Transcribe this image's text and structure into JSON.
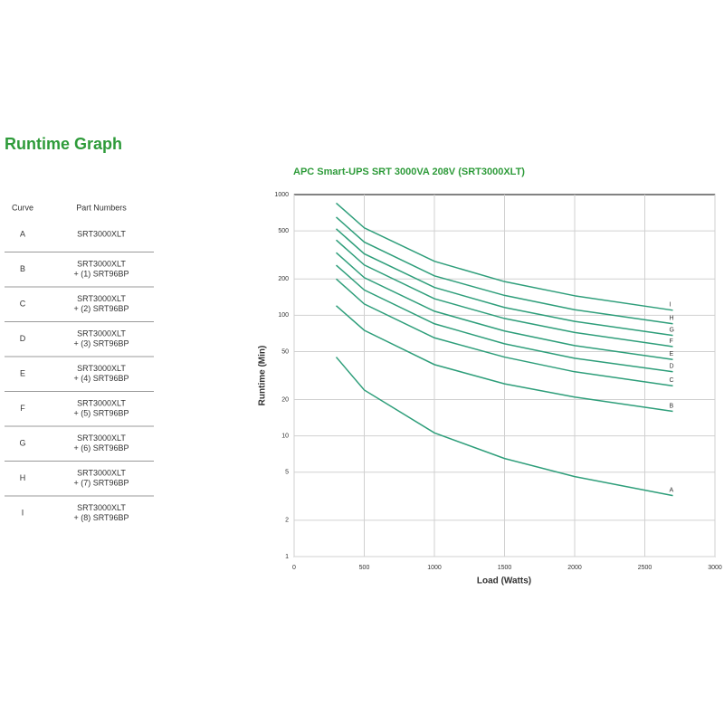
{
  "header": {
    "title": "Runtime Graph"
  },
  "table": {
    "headers": [
      "Curve",
      "Part Numbers"
    ],
    "rows": [
      [
        "A",
        [
          "SRT3000XLT"
        ]
      ],
      [
        "B",
        [
          "SRT3000XLT",
          "+ (1) SRT96BP"
        ]
      ],
      [
        "C",
        [
          "SRT3000XLT",
          "+ (2) SRT96BP"
        ]
      ],
      [
        "D",
        [
          "SRT3000XLT",
          "+ (3) SRT96BP"
        ]
      ],
      [
        "E",
        [
          "SRT3000XLT",
          "+ (4) SRT96BP"
        ]
      ],
      [
        "F",
        [
          "SRT3000XLT",
          "+ (5) SRT96BP"
        ]
      ],
      [
        "G",
        [
          "SRT3000XLT",
          "+ (6) SRT96BP"
        ]
      ],
      [
        "H",
        [
          "SRT3000XLT",
          "+ (7) SRT96BP"
        ]
      ],
      [
        "I",
        [
          "SRT3000XLT",
          "+ (8) SRT96BP"
        ]
      ]
    ]
  },
  "chart_data": {
    "type": "line",
    "title": "APC Smart-UPS SRT 3000VA 208V (SRT3000XLT)",
    "x_label": "Load (Watts)",
    "y_label": "Runtime (Min)",
    "x": [
      300,
      500,
      1000,
      1500,
      2000,
      2700
    ],
    "xlim": [
      0,
      3000
    ],
    "xticks": [
      0,
      500,
      1000,
      1500,
      2000,
      2500,
      3000
    ],
    "ylim": [
      1,
      1000
    ],
    "yticks": [
      1,
      2,
      5,
      10,
      20,
      50,
      100,
      200,
      500,
      1000
    ],
    "log_y": true,
    "grid": true,
    "series": [
      {
        "name": "A",
        "color": "#2e9e7a",
        "values": [
          45,
          24,
          10.6,
          6.5,
          4.6,
          3.2
        ]
      },
      {
        "name": "B",
        "color": "#2e9e7a",
        "values": [
          120,
          75,
          39,
          27,
          21,
          16
        ]
      },
      {
        "name": "C",
        "color": "#2e9e7a",
        "values": [
          200,
          124,
          65,
          45,
          34,
          26
        ]
      },
      {
        "name": "D",
        "color": "#2e9e7a",
        "values": [
          260,
          162,
          85,
          58,
          44,
          34
        ]
      },
      {
        "name": "E",
        "color": "#2e9e7a",
        "values": [
          330,
          205,
          108,
          74,
          56,
          43
        ]
      },
      {
        "name": "F",
        "color": "#2e9e7a",
        "values": [
          420,
          261,
          137,
          94,
          72,
          55
        ]
      },
      {
        "name": "G",
        "color": "#2e9e7a",
        "values": [
          520,
          323,
          170,
          116,
          89,
          68
        ]
      },
      {
        "name": "H",
        "color": "#2e9e7a",
        "values": [
          650,
          404,
          212,
          146,
          111,
          85
        ]
      },
      {
        "name": "I",
        "color": "#2e9e7a",
        "values": [
          850,
          530,
          280,
          190,
          145,
          110
        ]
      }
    ]
  }
}
